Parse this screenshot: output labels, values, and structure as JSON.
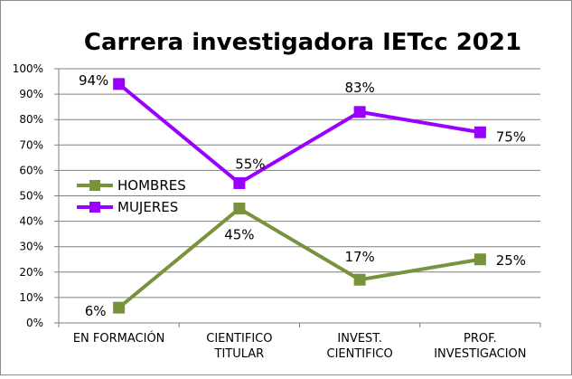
{
  "chart_data": {
    "type": "line",
    "title": "Carrera investigadora IETcc 2021",
    "categories": [
      [
        "EN FORMACIÓN"
      ],
      [
        "CIENTIFICO",
        "TITULAR"
      ],
      [
        "INVEST.",
        "CIENTIFICO"
      ],
      [
        "PROF.",
        "INVESTIGACION"
      ]
    ],
    "ylim": [
      0,
      100
    ],
    "yticks": [
      "0%",
      "10%",
      "20%",
      "30%",
      "40%",
      "50%",
      "60%",
      "70%",
      "80%",
      "90%",
      "100%"
    ],
    "grid": true,
    "legend": "middle-left",
    "series": [
      {
        "name": "HOMBRES",
        "color": "#77933c",
        "values": [
          6,
          45,
          17,
          25
        ],
        "labels": [
          "6%",
          "45%",
          "17%",
          "25%"
        ]
      },
      {
        "name": "MUJERES",
        "color": "#9900ff",
        "values": [
          94,
          55,
          83,
          75
        ],
        "labels": [
          "94%",
          "55%",
          "83%",
          "75%"
        ]
      }
    ]
  }
}
